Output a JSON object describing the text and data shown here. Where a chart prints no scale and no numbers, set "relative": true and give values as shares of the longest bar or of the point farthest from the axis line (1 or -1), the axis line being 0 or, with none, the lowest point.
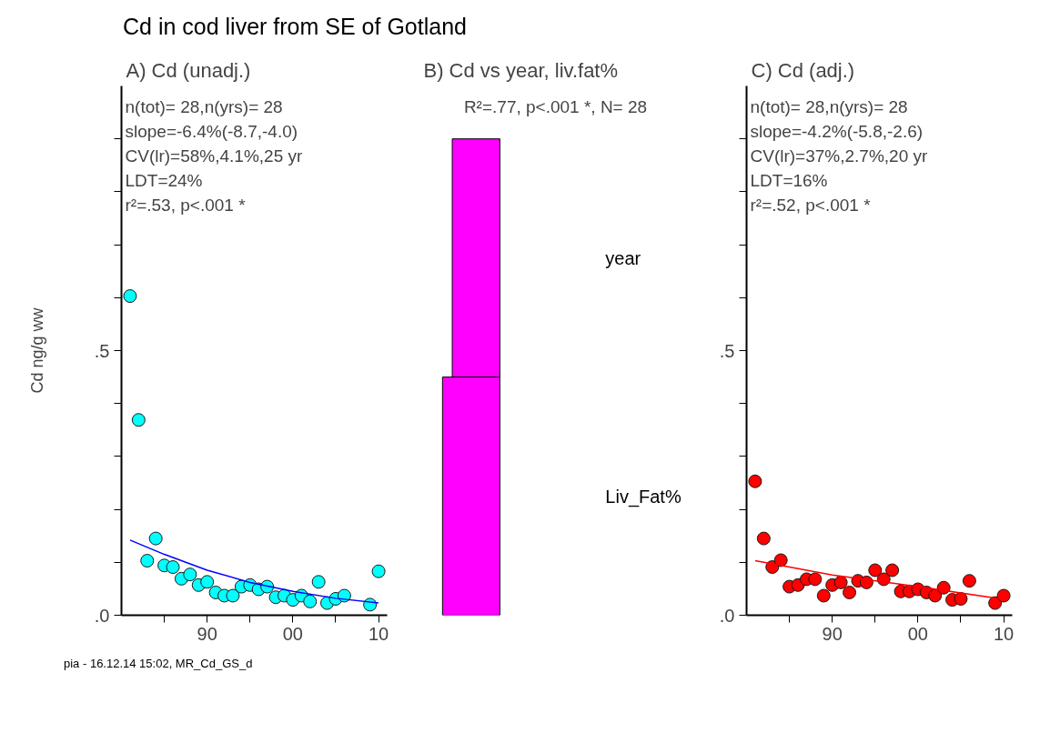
{
  "chart_data": [
    {
      "type": "scatter",
      "title": "Cd in cod liver from SE of Gotland",
      "subtitle": "A) Cd (unadj.)",
      "ylabel": "Cd ng/g ww",
      "xlim": [
        1980,
        2011
      ],
      "ylim": [
        0,
        1
      ],
      "xticks": [
        {
          "value": 1985,
          "label": null
        },
        {
          "value": 1990,
          "label": "90"
        },
        {
          "value": 1995,
          "label": null
        },
        {
          "value": 2000,
          "label": "00"
        },
        {
          "value": 2005,
          "label": null
        },
        {
          "value": 2010,
          "label": "10"
        }
      ],
      "yticks": [
        {
          "value": 0,
          "label": ".0"
        },
        {
          "value": 0.1,
          "label": null
        },
        {
          "value": 0.2,
          "label": null
        },
        {
          "value": 0.3,
          "label": null
        },
        {
          "value": 0.4,
          "label": null
        },
        {
          "value": 0.5,
          "label": ".5"
        },
        {
          "value": 0.6,
          "label": null
        },
        {
          "value": 0.7,
          "label": null
        },
        {
          "value": 0.8,
          "label": null
        },
        {
          "value": 0.9,
          "label": null
        }
      ],
      "annotations": [
        "n(tot)= 28,n(yrs)= 28",
        "slope=-6.4%(-8.7,-4.0)",
        "CV(lr)=58%,4.1%,25 yr",
        "LDT=24%",
        "r²=.53, p<.001 *",
        "pia - 16.12.14 15:02, MR_Cd_GS_d"
      ],
      "series": [
        {
          "type": "scatter",
          "marker": "circle",
          "color": "#00ffff",
          "x": [
            1981,
            1982,
            1983,
            1984,
            1985,
            1986,
            1987,
            1988,
            1989,
            1990,
            1991,
            1992,
            1993,
            1994,
            1995,
            1996,
            1997,
            1998,
            1999,
            2000,
            2001,
            2002,
            2003,
            2004,
            2005,
            2006,
            2009,
            2010
          ],
          "values": [
            0.603,
            0.369,
            0.103,
            0.145,
            0.094,
            0.091,
            0.069,
            0.077,
            0.057,
            0.063,
            0.043,
            0.037,
            0.037,
            0.054,
            0.057,
            0.049,
            0.054,
            0.034,
            0.037,
            0.029,
            0.037,
            0.026,
            0.063,
            0.023,
            0.031,
            0.037,
            0.02,
            0.083
          ]
        },
        {
          "type": "line",
          "color": "#0000ff",
          "x": [
            1981,
            1985,
            1990,
            1995,
            2000,
            2005,
            2010
          ],
          "values": [
            0.142,
            0.115,
            0.085,
            0.062,
            0.045,
            0.032,
            0.023
          ]
        }
      ]
    },
    {
      "type": "bar",
      "subtitle": "B) Cd vs year, liv.fat%",
      "orientation": "horizontal",
      "relative": true,
      "categories": [
        "year",
        "Liv_Fat%"
      ],
      "values": [
        0.83,
        1
      ],
      "color": "#ff00ff",
      "annotations": [
        "R²=.77, p<.001 *, N= 28"
      ]
    },
    {
      "type": "scatter",
      "subtitle": "C) Cd (adj.)",
      "xlim": [
        1980,
        2011
      ],
      "ylim": [
        0,
        1
      ],
      "xticks": [
        {
          "value": 1985,
          "label": null
        },
        {
          "value": 1990,
          "label": "90"
        },
        {
          "value": 1995,
          "label": null
        },
        {
          "value": 2000,
          "label": "00"
        },
        {
          "value": 2005,
          "label": null
        },
        {
          "value": 2010,
          "label": "10"
        }
      ],
      "yticks": [
        {
          "value": 0,
          "label": ".0"
        },
        {
          "value": 0.1,
          "label": null
        },
        {
          "value": 0.2,
          "label": null
        },
        {
          "value": 0.3,
          "label": null
        },
        {
          "value": 0.4,
          "label": null
        },
        {
          "value": 0.5,
          "label": ".5"
        },
        {
          "value": 0.6,
          "label": null
        },
        {
          "value": 0.7,
          "label": null
        },
        {
          "value": 0.8,
          "label": null
        },
        {
          "value": 0.9,
          "label": null
        }
      ],
      "annotations": [
        "n(tot)= 28,n(yrs)= 28",
        "slope=-4.2%(-5.8,-2.6)",
        "CV(lr)=37%,2.7%,20 yr",
        "LDT=16%",
        "r²=.52, p<.001 *"
      ],
      "series": [
        {
          "type": "scatter",
          "marker": "circle",
          "color": "#ff0000",
          "x": [
            1981,
            1982,
            1983,
            1984,
            1985,
            1986,
            1987,
            1988,
            1989,
            1990,
            1991,
            1992,
            1993,
            1994,
            1995,
            1996,
            1997,
            1998,
            1999,
            2000,
            2001,
            2002,
            2003,
            2004,
            2005,
            2006,
            2009,
            2010
          ],
          "values": [
            0.253,
            0.145,
            0.091,
            0.104,
            0.054,
            0.057,
            0.068,
            0.068,
            0.037,
            0.057,
            0.062,
            0.043,
            0.065,
            0.062,
            0.085,
            0.068,
            0.085,
            0.045,
            0.045,
            0.049,
            0.043,
            0.037,
            0.052,
            0.029,
            0.031,
            0.065,
            0.023,
            0.037
          ]
        },
        {
          "type": "line",
          "color": "#ff0000",
          "x": [
            1981,
            1990,
            2000,
            2010
          ],
          "values": [
            0.103,
            0.076,
            0.054,
            0.03
          ]
        }
      ]
    }
  ]
}
